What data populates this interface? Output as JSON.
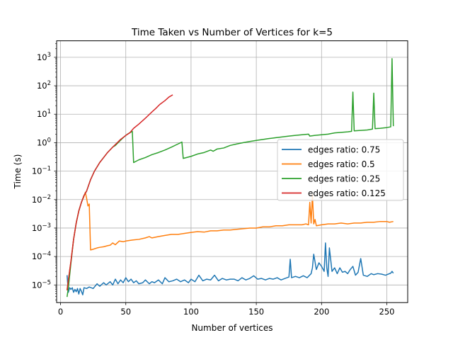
{
  "chart_data": {
    "type": "line",
    "title": "Time Taken vs Number of Vertices for k=5",
    "xlabel": "Number of vertices",
    "ylabel": "Time (s)",
    "xlim": [
      -3,
      266
    ],
    "ylim": [
      2.4e-06,
      3800
    ],
    "yscale": "log",
    "grid": true,
    "legend_position": "center-right",
    "x_ticks": [
      {
        "value": 0,
        "label": "0"
      },
      {
        "value": 50,
        "label": "50"
      },
      {
        "value": 100,
        "label": "100"
      },
      {
        "value": 150,
        "label": "150"
      },
      {
        "value": 200,
        "label": "200"
      },
      {
        "value": 250,
        "label": "250"
      }
    ],
    "y_ticks": [
      {
        "value": 1e-05,
        "base": "10",
        "exp": "−5"
      },
      {
        "value": 0.0001,
        "base": "10",
        "exp": "−4"
      },
      {
        "value": 0.001,
        "base": "10",
        "exp": "−3"
      },
      {
        "value": 0.01,
        "base": "10",
        "exp": "−2"
      },
      {
        "value": 0.1,
        "base": "10",
        "exp": "−1"
      },
      {
        "value": 1,
        "base": "10",
        "exp": "0"
      },
      {
        "value": 10,
        "base": "10",
        "exp": "1"
      },
      {
        "value": 100,
        "base": "10",
        "exp": "2"
      },
      {
        "value": 1000,
        "base": "10",
        "exp": "3"
      }
    ],
    "series": [
      {
        "name": "edges ratio: 0.75",
        "color": "#1f77b4",
        "points": [
          [
            5,
            2.2e-05
          ],
          [
            6,
            5.5e-06
          ],
          [
            7,
            8e-06
          ],
          [
            8,
            7e-06
          ],
          [
            9,
            8e-06
          ],
          [
            10,
            5.5e-06
          ],
          [
            11,
            7e-06
          ],
          [
            12,
            5.8e-06
          ],
          [
            13,
            7.5e-06
          ],
          [
            14,
            4.8e-06
          ],
          [
            15,
            7.5e-06
          ],
          [
            16,
            6e-06
          ],
          [
            17,
            4.5e-06
          ],
          [
            18,
            8e-06
          ],
          [
            20,
            7.5e-06
          ],
          [
            22,
            8.5e-06
          ],
          [
            25,
            7.5e-06
          ],
          [
            28,
            1.1e-05
          ],
          [
            30,
            9e-06
          ],
          [
            33,
            1.2e-05
          ],
          [
            35,
            1e-05
          ],
          [
            38,
            1.3e-05
          ],
          [
            40,
            1e-05
          ],
          [
            42,
            1.6e-05
          ],
          [
            44,
            1.1e-05
          ],
          [
            46,
            1.5e-05
          ],
          [
            48,
            1.2e-05
          ],
          [
            50,
            1.8e-05
          ],
          [
            52,
            1.3e-05
          ],
          [
            54,
            1.6e-05
          ],
          [
            56,
            1.2e-05
          ],
          [
            58,
            1.4e-05
          ],
          [
            60,
            1.1e-05
          ],
          [
            63,
            1.2e-05
          ],
          [
            65,
            1.5e-05
          ],
          [
            68,
            1.1e-05
          ],
          [
            70,
            1.3e-05
          ],
          [
            72,
            1.2e-05
          ],
          [
            75,
            1.5e-05
          ],
          [
            78,
            1.1e-05
          ],
          [
            80,
            1.8e-05
          ],
          [
            83,
            1.3e-05
          ],
          [
            86,
            1.4e-05
          ],
          [
            89,
            1.6e-05
          ],
          [
            92,
            1.3e-05
          ],
          [
            95,
            1.5e-05
          ],
          [
            98,
            1.2e-05
          ],
          [
            100,
            1.6e-05
          ],
          [
            103,
            1.3e-05
          ],
          [
            106,
            2.2e-05
          ],
          [
            109,
            1.4e-05
          ],
          [
            112,
            1.6e-05
          ],
          [
            115,
            1.5e-05
          ],
          [
            118,
            2.2e-05
          ],
          [
            121,
            1.4e-05
          ],
          [
            124,
            1.7e-05
          ],
          [
            127,
            1.5e-05
          ],
          [
            130,
            1.6e-05
          ],
          [
            133,
            1.6e-05
          ],
          [
            136,
            1.4e-05
          ],
          [
            139,
            1.8e-05
          ],
          [
            142,
            1.5e-05
          ],
          [
            145,
            1.7e-05
          ],
          [
            148,
            2.1e-05
          ],
          [
            151,
            1.6e-05
          ],
          [
            154,
            1.7e-05
          ],
          [
            157,
            1.5e-05
          ],
          [
            160,
            1.7e-05
          ],
          [
            163,
            1.6e-05
          ],
          [
            166,
            1.8e-05
          ],
          [
            169,
            1.5e-05
          ],
          [
            172,
            1.7e-05
          ],
          [
            175,
            1.9e-05
          ],
          [
            176,
            8e-05
          ],
          [
            177,
            1.8e-05
          ],
          [
            180,
            2e-05
          ],
          [
            183,
            1.8e-05
          ],
          [
            186,
            2.1e-05
          ],
          [
            189,
            1.8e-05
          ],
          [
            192,
            2.5e-05
          ],
          [
            193,
            4e-05
          ],
          [
            194,
            0.00012
          ],
          [
            196,
            3.5e-05
          ],
          [
            198,
            6e-05
          ],
          [
            200,
            4.5e-05
          ],
          [
            202,
            3e-05
          ],
          [
            203,
            0.0003
          ],
          [
            204,
            4e-05
          ],
          [
            205,
            2e-05
          ],
          [
            206,
            0.0002
          ],
          [
            208,
            3e-05
          ],
          [
            210,
            4e-05
          ],
          [
            212,
            2.5e-05
          ],
          [
            214,
            4e-05
          ],
          [
            216,
            2.8e-05
          ],
          [
            218,
            3e-05
          ],
          [
            220,
            2.5e-05
          ],
          [
            222,
            3.5e-05
          ],
          [
            224,
            4.5e-05
          ],
          [
            226,
            2.2e-05
          ],
          [
            228,
            2.8e-05
          ],
          [
            230,
            8.5e-05
          ],
          [
            232,
            2.2e-05
          ],
          [
            235,
            2e-05
          ],
          [
            238,
            2.5e-05
          ],
          [
            240,
            2.3e-05
          ],
          [
            243,
            2.5e-05
          ],
          [
            246,
            2.4e-05
          ],
          [
            249,
            2.2e-05
          ],
          [
            251,
            2.4e-05
          ],
          [
            253,
            2.6e-05
          ],
          [
            254,
            3e-05
          ],
          [
            255,
            2.6e-05
          ]
        ]
      },
      {
        "name": "edges ratio: 0.5",
        "color": "#ff7f0e",
        "points": [
          [
            5,
            6.5e-06
          ],
          [
            6,
            1.5e-05
          ],
          [
            8,
            7e-05
          ],
          [
            10,
            0.0004
          ],
          [
            12,
            0.0015
          ],
          [
            14,
            0.004
          ],
          [
            16,
            0.008
          ],
          [
            18,
            0.013
          ],
          [
            19,
            0.018
          ],
          [
            20,
            0.011
          ],
          [
            21,
            0.006
          ],
          [
            22,
            0.007
          ],
          [
            23,
            0.00017
          ],
          [
            25,
            0.00018
          ],
          [
            28,
            0.0002
          ],
          [
            30,
            0.00021
          ],
          [
            33,
            0.00022
          ],
          [
            36,
            0.00024
          ],
          [
            38,
            0.00025
          ],
          [
            40,
            0.0003
          ],
          [
            42,
            0.00026
          ],
          [
            45,
            0.00035
          ],
          [
            48,
            0.00033
          ],
          [
            50,
            0.00035
          ],
          [
            55,
            0.00038
          ],
          [
            60,
            0.0004
          ],
          [
            65,
            0.00045
          ],
          [
            68,
            0.0005
          ],
          [
            70,
            0.00045
          ],
          [
            75,
            0.0005
          ],
          [
            80,
            0.00055
          ],
          [
            85,
            0.0006
          ],
          [
            90,
            0.0006
          ],
          [
            95,
            0.00065
          ],
          [
            100,
            0.0007
          ],
          [
            105,
            0.00075
          ],
          [
            110,
            0.00072
          ],
          [
            115,
            0.0008
          ],
          [
            120,
            0.0008
          ],
          [
            125,
            0.00085
          ],
          [
            130,
            0.00085
          ],
          [
            135,
            0.0009
          ],
          [
            140,
            0.00095
          ],
          [
            145,
            0.001
          ],
          [
            150,
            0.001
          ],
          [
            155,
            0.0011
          ],
          [
            160,
            0.0011
          ],
          [
            165,
            0.0012
          ],
          [
            170,
            0.0012
          ],
          [
            175,
            0.0013
          ],
          [
            180,
            0.0013
          ],
          [
            185,
            0.0013
          ],
          [
            188,
            0.0014
          ],
          [
            190,
            0.0013
          ],
          [
            191,
            0.008
          ],
          [
            192,
            0.0015
          ],
          [
            193,
            0.015
          ],
          [
            194,
            0.0014
          ],
          [
            195,
            0.002
          ],
          [
            196,
            0.0012
          ],
          [
            200,
            0.0013
          ],
          [
            205,
            0.0014
          ],
          [
            210,
            0.0014
          ],
          [
            215,
            0.0015
          ],
          [
            220,
            0.0014
          ],
          [
            225,
            0.0015
          ],
          [
            230,
            0.0015
          ],
          [
            235,
            0.0016
          ],
          [
            240,
            0.0016
          ],
          [
            245,
            0.0017
          ],
          [
            250,
            0.0017
          ],
          [
            252,
            0.0016
          ],
          [
            255,
            0.0017
          ]
        ]
      },
      {
        "name": "edges ratio: 0.25",
        "color": "#2ca02c",
        "points": [
          [
            5,
            3.8e-06
          ],
          [
            6,
            8e-06
          ],
          [
            8,
            6e-05
          ],
          [
            10,
            0.0004
          ],
          [
            12,
            0.0015
          ],
          [
            14,
            0.004
          ],
          [
            16,
            0.008
          ],
          [
            18,
            0.014
          ],
          [
            20,
            0.02
          ],
          [
            23,
            0.05
          ],
          [
            26,
            0.1
          ],
          [
            30,
            0.2
          ],
          [
            33,
            0.3
          ],
          [
            36,
            0.45
          ],
          [
            40,
            0.7
          ],
          [
            42,
            0.8
          ],
          [
            45,
            1.1
          ],
          [
            48,
            1.5
          ],
          [
            50,
            1.8
          ],
          [
            52,
            2.1
          ],
          [
            55,
            2.5
          ],
          [
            56,
            0.2
          ],
          [
            60,
            0.25
          ],
          [
            65,
            0.3
          ],
          [
            70,
            0.38
          ],
          [
            75,
            0.45
          ],
          [
            80,
            0.55
          ],
          [
            85,
            0.7
          ],
          [
            90,
            0.9
          ],
          [
            93,
            1.05
          ],
          [
            94,
            0.28
          ],
          [
            100,
            0.33
          ],
          [
            105,
            0.4
          ],
          [
            110,
            0.45
          ],
          [
            115,
            0.55
          ],
          [
            117,
            0.5
          ],
          [
            120,
            0.6
          ],
          [
            125,
            0.65
          ],
          [
            130,
            0.8
          ],
          [
            135,
            0.9
          ],
          [
            140,
            1.0
          ],
          [
            145,
            1.1
          ],
          [
            150,
            1.2
          ],
          [
            155,
            1.3
          ],
          [
            160,
            1.4
          ],
          [
            165,
            1.5
          ],
          [
            170,
            1.6
          ],
          [
            175,
            1.7
          ],
          [
            180,
            1.8
          ],
          [
            185,
            1.9
          ],
          [
            190,
            2.0
          ],
          [
            191,
            1.7
          ],
          [
            195,
            1.8
          ],
          [
            200,
            1.9
          ],
          [
            205,
            2.0
          ],
          [
            210,
            2.2
          ],
          [
            215,
            2.3
          ],
          [
            220,
            2.4
          ],
          [
            223,
            2.5
          ],
          [
            224,
            60
          ],
          [
            225,
            2.6
          ],
          [
            230,
            2.7
          ],
          [
            235,
            2.8
          ],
          [
            239,
            3.0
          ],
          [
            240,
            55
          ],
          [
            241,
            3.1
          ],
          [
            245,
            3.2
          ],
          [
            250,
            3.4
          ],
          [
            253,
            3.6
          ],
          [
            254,
            900
          ],
          [
            255,
            3.8
          ]
        ]
      },
      {
        "name": "edges ratio: 0.125",
        "color": "#d62728",
        "points": [
          [
            5,
            6.5e-06
          ],
          [
            6,
            1.5e-05
          ],
          [
            8,
            7e-05
          ],
          [
            10,
            0.0004
          ],
          [
            12,
            0.0015
          ],
          [
            14,
            0.004
          ],
          [
            16,
            0.008
          ],
          [
            18,
            0.014
          ],
          [
            20,
            0.02
          ],
          [
            23,
            0.05
          ],
          [
            26,
            0.1
          ],
          [
            30,
            0.2
          ],
          [
            33,
            0.3
          ],
          [
            36,
            0.45
          ],
          [
            40,
            0.7
          ],
          [
            43,
            0.95
          ],
          [
            46,
            1.3
          ],
          [
            50,
            1.8
          ],
          [
            53,
            2.2
          ],
          [
            56,
            3.2
          ],
          [
            60,
            4.5
          ],
          [
            63,
            6
          ],
          [
            66,
            8
          ],
          [
            70,
            12
          ],
          [
            73,
            16
          ],
          [
            76,
            22
          ],
          [
            80,
            30
          ],
          [
            83,
            40
          ],
          [
            86,
            48
          ]
        ]
      }
    ]
  }
}
